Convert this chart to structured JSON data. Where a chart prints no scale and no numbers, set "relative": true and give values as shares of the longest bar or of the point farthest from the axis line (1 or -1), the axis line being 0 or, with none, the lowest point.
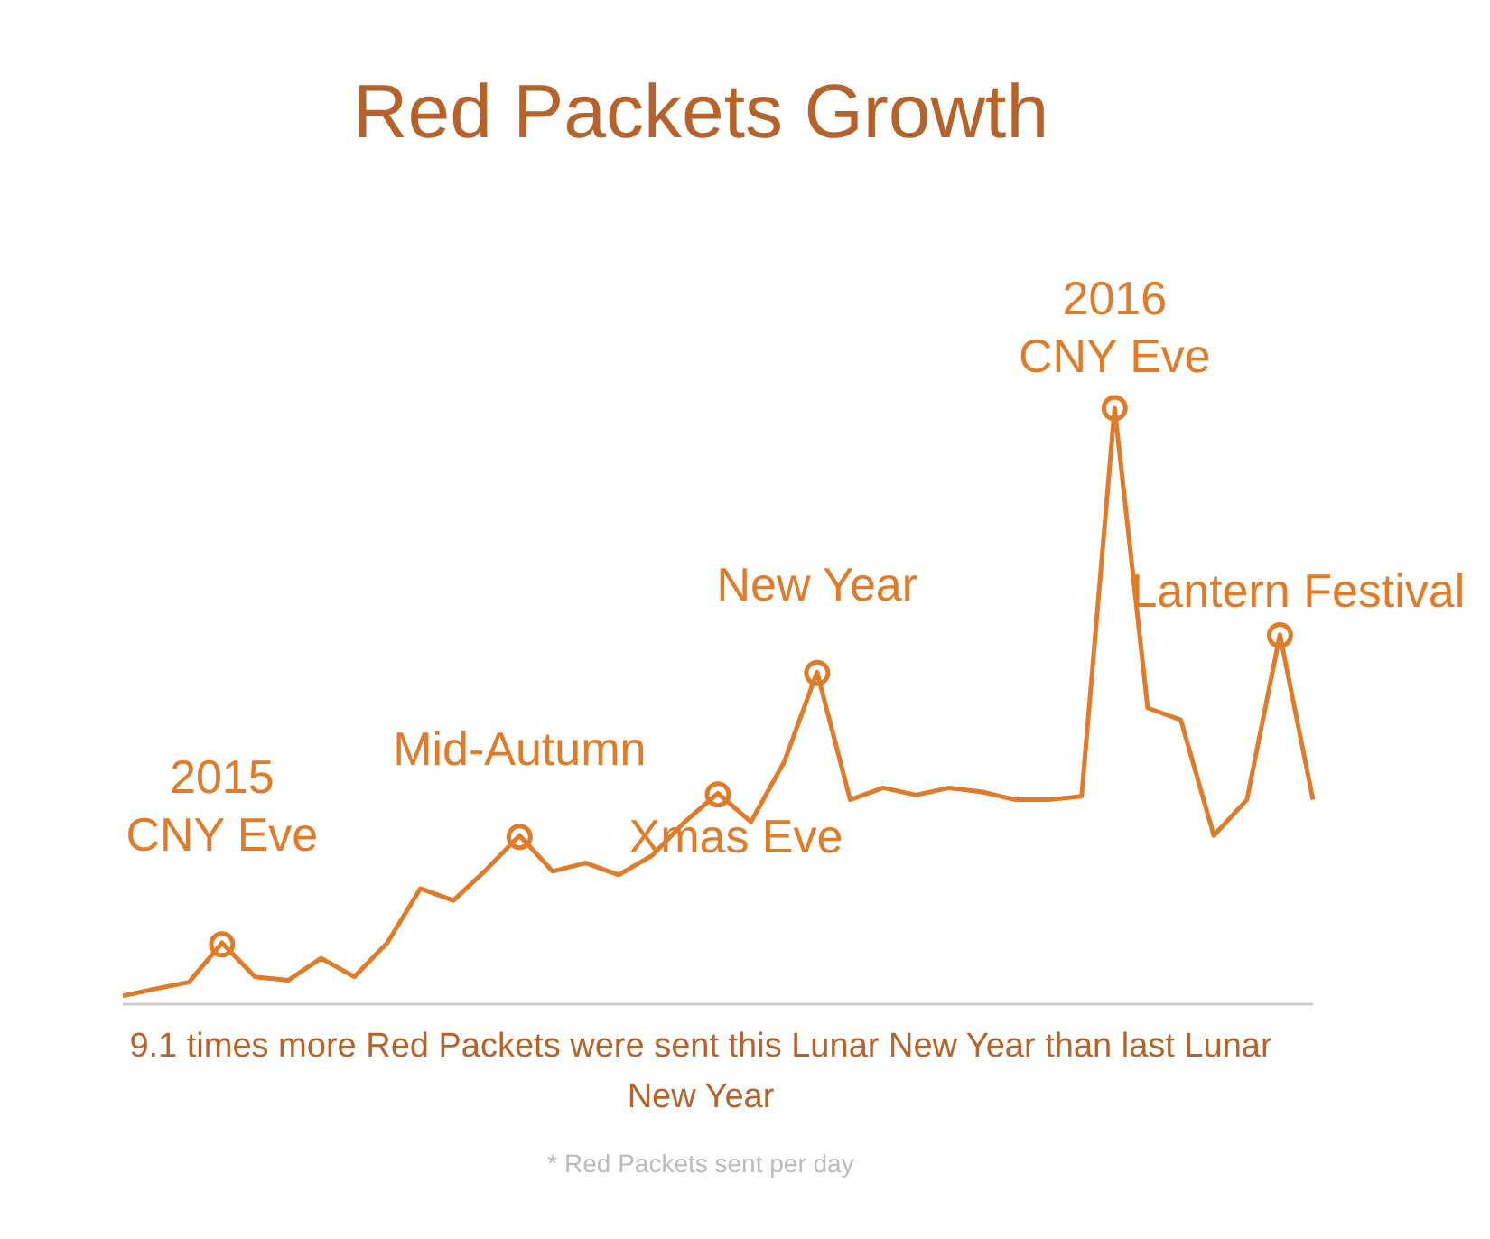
{
  "chart_data": {
    "type": "line",
    "title": "Red Packets Growth",
    "relative": true,
    "categories": [
      null,
      null,
      null,
      null,
      null,
      null,
      null,
      null,
      null,
      null,
      null,
      null,
      null,
      null,
      null,
      null,
      null,
      null,
      null,
      null,
      null,
      null,
      null,
      null,
      null,
      null,
      null,
      null,
      null,
      null,
      null,
      null,
      null,
      null,
      null,
      null,
      null
    ],
    "series": [
      {
        "color": "#e07b2a",
        "values": [
          0.014,
          0.026,
          0.037,
          0.103,
          0.046,
          0.04,
          0.077,
          0.046,
          0.103,
          0.194,
          0.174,
          0.226,
          0.283,
          0.223,
          0.237,
          0.217,
          0.249,
          0.306,
          0.354,
          0.306,
          0.406,
          0.557,
          0.343,
          0.363,
          0.351,
          0.363,
          0.356,
          0.343,
          0.343,
          0.349,
          1,
          0.497,
          0.477,
          0.283,
          0.343,
          0.62,
          0.343
        ]
      }
    ],
    "annotations": [
      {
        "text": "2015\nCNY Eve",
        "y": 0.103
      },
      {
        "text": "Mid-Autumn",
        "y": 0.283
      },
      {
        "text": "Xmas Eve",
        "y": 0.354
      },
      {
        "text": "New Year",
        "y": 0.557
      },
      {
        "text": "2016\nCNY Eve",
        "y": 1
      },
      {
        "text": "Lantern Festival",
        "y": 0.62
      },
      "9.1 times more Red Packets were sent this Lunar New Year than last Lunar New Year",
      "* Red Packets sent per day"
    ],
    "line_style": "solid"
  }
}
